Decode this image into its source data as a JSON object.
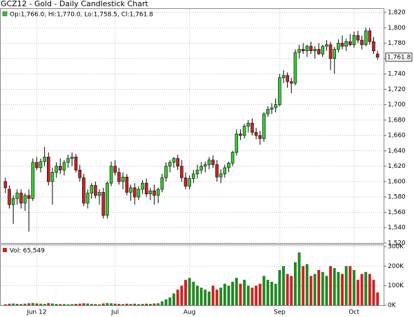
{
  "chart_data": [
    {
      "type": "candlestick",
      "title": "GCZ12 - Gold - Daily Candlestick Chart",
      "legend": "Op:1,766.0, Hi:1,770.0, Lo:1,758.5, Cl:1,761.8",
      "last_label": "1,761.8",
      "up_color": "#33cc33",
      "down_color": "#cc2222",
      "categories": [
        null,
        null,
        null,
        null,
        null,
        null,
        null,
        null,
        "Jun 12",
        null,
        null,
        null,
        null,
        null,
        null,
        null,
        null,
        null,
        null,
        null,
        null,
        null,
        null,
        null,
        null,
        null,
        null,
        null,
        "Jul",
        null,
        null,
        null,
        null,
        null,
        null,
        null,
        null,
        null,
        null,
        null,
        null,
        null,
        null,
        null,
        null,
        null,
        null,
        "Aug",
        null,
        null,
        null,
        null,
        null,
        null,
        null,
        null,
        null,
        null,
        null,
        null,
        null,
        null,
        null,
        null,
        null,
        null,
        null,
        null,
        null,
        null,
        "Sep",
        null,
        null,
        null,
        null,
        null,
        null,
        null,
        null,
        null,
        null,
        null,
        null,
        null,
        null,
        null,
        null,
        null,
        null,
        "Oct",
        null,
        null,
        null,
        null,
        null,
        null
      ],
      "open": [
        1600,
        1590,
        1570,
        1578,
        1585,
        1572,
        1582,
        1578,
        1625,
        1618,
        1626,
        1632,
        1600,
        1612,
        1620,
        1615,
        1625,
        1630,
        1632,
        1615,
        1605,
        1572,
        1585,
        1595,
        1582,
        1586,
        1556,
        1598,
        1620,
        1612,
        1600,
        1606,
        1586,
        1592,
        1580,
        1590,
        1598,
        1584,
        1588,
        1582,
        1590,
        1605,
        1620,
        1625,
        1630,
        1620,
        1605,
        1594,
        1604,
        1610,
        1615,
        1620,
        1622,
        1628,
        1622,
        1606,
        1610,
        1618,
        1624,
        1638,
        1662,
        1660,
        1672,
        1676,
        1664,
        1660,
        1656,
        1688,
        1694,
        1696,
        1700,
        1735,
        1738,
        1730,
        1728,
        1768,
        1772,
        1770,
        1776,
        1770,
        1772,
        1766,
        1776,
        1778,
        1760,
        1772,
        1780,
        1776,
        1782,
        1778,
        1790,
        1784,
        1778,
        1796,
        1782,
        1766
      ],
      "high": [
        1605,
        1595,
        1582,
        1590,
        1590,
        1585,
        1590,
        1630,
        1632,
        1630,
        1645,
        1638,
        1618,
        1625,
        1630,
        1628,
        1635,
        1638,
        1636,
        1622,
        1610,
        1590,
        1598,
        1600,
        1590,
        1592,
        1600,
        1626,
        1628,
        1618,
        1612,
        1610,
        1596,
        1598,
        1594,
        1602,
        1604,
        1592,
        1596,
        1592,
        1610,
        1625,
        1628,
        1632,
        1635,
        1628,
        1612,
        1608,
        1615,
        1622,
        1625,
        1626,
        1632,
        1634,
        1628,
        1616,
        1622,
        1626,
        1640,
        1668,
        1668,
        1675,
        1680,
        1682,
        1670,
        1666,
        1690,
        1698,
        1702,
        1708,
        1740,
        1745,
        1742,
        1735,
        1772,
        1778,
        1780,
        1778,
        1782,
        1776,
        1780,
        1778,
        1784,
        1782,
        1775,
        1785,
        1790,
        1786,
        1792,
        1795,
        1796,
        1790,
        1800,
        1800,
        1788,
        1770
      ],
      "low": [
        1585,
        1565,
        1545,
        1570,
        1565,
        1562,
        1535,
        1575,
        1615,
        1612,
        1620,
        1595,
        1570,
        1605,
        1610,
        1608,
        1618,
        1620,
        1612,
        1600,
        1568,
        1565,
        1578,
        1578,
        1570,
        1552,
        1552,
        1594,
        1608,
        1596,
        1590,
        1582,
        1575,
        1570,
        1576,
        1584,
        1580,
        1576,
        1570,
        1572,
        1586,
        1600,
        1612,
        1618,
        1615,
        1600,
        1590,
        1590,
        1598,
        1604,
        1610,
        1612,
        1616,
        1618,
        1600,
        1598,
        1605,
        1612,
        1620,
        1634,
        1654,
        1656,
        1664,
        1660,
        1655,
        1648,
        1652,
        1684,
        1688,
        1690,
        1698,
        1728,
        1722,
        1715,
        1725,
        1760,
        1766,
        1762,
        1766,
        1760,
        1765,
        1762,
        1770,
        1745,
        1740,
        1768,
        1772,
        1770,
        1776,
        1774,
        1780,
        1772,
        1776,
        1778,
        1766,
        1758.5
      ],
      "close": [
        1592,
        1570,
        1578,
        1585,
        1572,
        1582,
        1578,
        1625,
        1618,
        1626,
        1632,
        1600,
        1612,
        1620,
        1615,
        1625,
        1630,
        1632,
        1615,
        1605,
        1572,
        1585,
        1595,
        1582,
        1586,
        1556,
        1598,
        1620,
        1612,
        1600,
        1606,
        1586,
        1592,
        1580,
        1590,
        1598,
        1584,
        1588,
        1582,
        1590,
        1605,
        1620,
        1625,
        1630,
        1620,
        1605,
        1594,
        1604,
        1610,
        1615,
        1620,
        1622,
        1628,
        1622,
        1606,
        1610,
        1618,
        1624,
        1638,
        1662,
        1660,
        1672,
        1676,
        1664,
        1660,
        1656,
        1688,
        1694,
        1696,
        1700,
        1735,
        1738,
        1730,
        1728,
        1768,
        1772,
        1770,
        1776,
        1770,
        1772,
        1766,
        1776,
        1778,
        1760,
        1772,
        1780,
        1776,
        1782,
        1778,
        1790,
        1784,
        1778,
        1796,
        1782,
        1770,
        1761.8
      ],
      "ylim": [
        1520,
        1820
      ],
      "yticks": [
        {
          "value": 1520,
          "label": "1,520"
        },
        {
          "value": 1540,
          "label": "1,540"
        },
        {
          "value": 1560,
          "label": "1,560"
        },
        {
          "value": 1580,
          "label": "1,580"
        },
        {
          "value": 1600,
          "label": "1,600"
        },
        {
          "value": 1620,
          "label": "1,620"
        },
        {
          "value": 1640,
          "label": "1,640"
        },
        {
          "value": 1660,
          "label": "1,660"
        },
        {
          "value": 1680,
          "label": "1,680"
        },
        {
          "value": 1700,
          "label": "1,700"
        },
        {
          "value": 1720,
          "label": "1,720"
        },
        {
          "value": 1740,
          "label": "1,740"
        },
        {
          "value": 1760,
          "label": "1,760"
        },
        {
          "value": 1780,
          "label": "1,780"
        },
        {
          "value": 1800,
          "label": "1,800"
        },
        {
          "value": 1820,
          "label": "1,820"
        }
      ],
      "grid": true
    },
    {
      "type": "bar",
      "legend": "Vol: 65,549",
      "values": [
        5000,
        8000,
        9000,
        7000,
        6000,
        8000,
        10000,
        12000,
        9000,
        8000,
        7000,
        11000,
        9000,
        7000,
        6000,
        6000,
        5000,
        6000,
        7000,
        8000,
        10000,
        9000,
        7000,
        6000,
        5000,
        9000,
        11000,
        10000,
        8000,
        7000,
        6000,
        8000,
        7000,
        8000,
        6000,
        7000,
        8000,
        7000,
        9000,
        10000,
        20000,
        30000,
        40000,
        60000,
        80000,
        100000,
        130000,
        140000,
        120000,
        100000,
        90000,
        80000,
        70000,
        100000,
        80000,
        90000,
        110000,
        100000,
        120000,
        140000,
        110000,
        130000,
        100000,
        90000,
        100000,
        110000,
        150000,
        130000,
        120000,
        110000,
        180000,
        200000,
        160000,
        150000,
        220000,
        270000,
        200000,
        210000,
        150000,
        160000,
        180000,
        170000,
        150000,
        200000,
        190000,
        170000,
        160000,
        200000,
        200000,
        180000,
        130000,
        160000,
        170000,
        160000,
        130000,
        65549
      ],
      "ylim": [
        0,
        300000
      ],
      "yticks": [
        {
          "value": 0,
          "label": "0K"
        },
        {
          "value": 100000,
          "label": "100K"
        },
        {
          "value": 200000,
          "label": "200K"
        },
        {
          "value": 300000,
          "label": "300K"
        }
      ],
      "grid": true
    }
  ]
}
